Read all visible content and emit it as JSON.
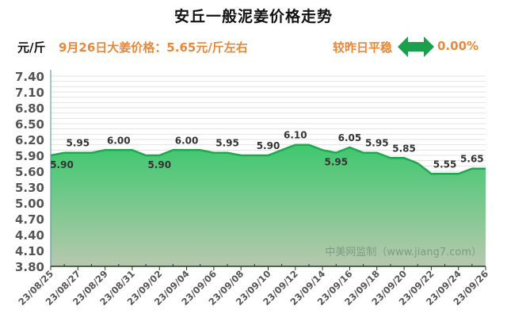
{
  "header": {
    "title": "安丘一般泥姜价格走势",
    "unit": "元/斤",
    "price_text": "9月26日大姜价格：5.65元/斤左右",
    "compare_text": "较昨日平稳",
    "change_icon": "double-arrow-icon",
    "change_value": "0.00%"
  },
  "watermark": "中美网监制（www.jiang7.com）",
  "colors": {
    "accent_orange": "#e8883a",
    "fill_top": "#3ec86e",
    "fill_bottom": "#b5c9ac",
    "line": "#1fa84f",
    "arrow": "#1aa04a"
  },
  "chart_data": {
    "type": "area",
    "title": "安丘一般泥姜价格走势",
    "ylabel": "元/斤",
    "xlabel": "",
    "ylim": [
      3.8,
      7.4
    ],
    "yticks": [
      "7.40",
      "7.10",
      "6.80",
      "6.50",
      "6.20",
      "5.90",
      "5.60",
      "5.30",
      "5.00",
      "4.70",
      "4.40",
      "4.10",
      "3.80"
    ],
    "xtick_labels": [
      "23/08/25",
      "23/08/27",
      "23/08/29",
      "23/08/31",
      "23/09/02",
      "23/09/04",
      "23/09/06",
      "23/09/08",
      "23/09/10",
      "23/09/12",
      "23/09/14",
      "23/09/16",
      "23/09/18",
      "23/09/20",
      "23/09/22",
      "23/09/24",
      "23/09/26"
    ],
    "x": [
      "23/08/25",
      "23/08/26",
      "23/08/27",
      "23/08/28",
      "23/08/29",
      "23/08/30",
      "23/08/31",
      "23/09/01",
      "23/09/02",
      "23/09/03",
      "23/09/04",
      "23/09/05",
      "23/09/06",
      "23/09/07",
      "23/09/08",
      "23/09/09",
      "23/09/10",
      "23/09/11",
      "23/09/12",
      "23/09/13",
      "23/09/14",
      "23/09/15",
      "23/09/16",
      "23/09/17",
      "23/09/18",
      "23/09/19",
      "23/09/20",
      "23/09/21",
      "23/09/22",
      "23/09/23",
      "23/09/24",
      "23/09/25",
      "23/09/26"
    ],
    "series": [
      {
        "name": "安丘一般泥姜价格",
        "values": [
          5.9,
          5.95,
          5.95,
          5.95,
          6.0,
          6.0,
          6.0,
          5.9,
          5.9,
          6.0,
          6.0,
          6.0,
          5.95,
          5.95,
          5.9,
          5.9,
          5.9,
          6.0,
          6.1,
          6.1,
          6.0,
          5.95,
          6.05,
          5.95,
          5.95,
          5.85,
          5.85,
          5.75,
          5.55,
          5.55,
          5.55,
          5.65,
          5.65
        ]
      }
    ],
    "data_labels": [
      {
        "index": 0,
        "text": "5.90",
        "pos": "below"
      },
      {
        "index": 2,
        "text": "5.95",
        "pos": "above"
      },
      {
        "index": 5,
        "text": "6.00",
        "pos": "above"
      },
      {
        "index": 8,
        "text": "5.90",
        "pos": "below"
      },
      {
        "index": 10,
        "text": "6.00",
        "pos": "above"
      },
      {
        "index": 13,
        "text": "5.95",
        "pos": "above"
      },
      {
        "index": 16,
        "text": "5.90",
        "pos": "above"
      },
      {
        "index": 18,
        "text": "6.10",
        "pos": "above"
      },
      {
        "index": 21,
        "text": "5.95",
        "pos": "below"
      },
      {
        "index": 22,
        "text": "6.05",
        "pos": "above"
      },
      {
        "index": 24,
        "text": "5.95",
        "pos": "above"
      },
      {
        "index": 26,
        "text": "5.85",
        "pos": "above"
      },
      {
        "index": 29,
        "text": "5.55",
        "pos": "above"
      },
      {
        "index": 31,
        "text": "5.65",
        "pos": "above"
      }
    ],
    "grid": true,
    "legend": "none"
  }
}
